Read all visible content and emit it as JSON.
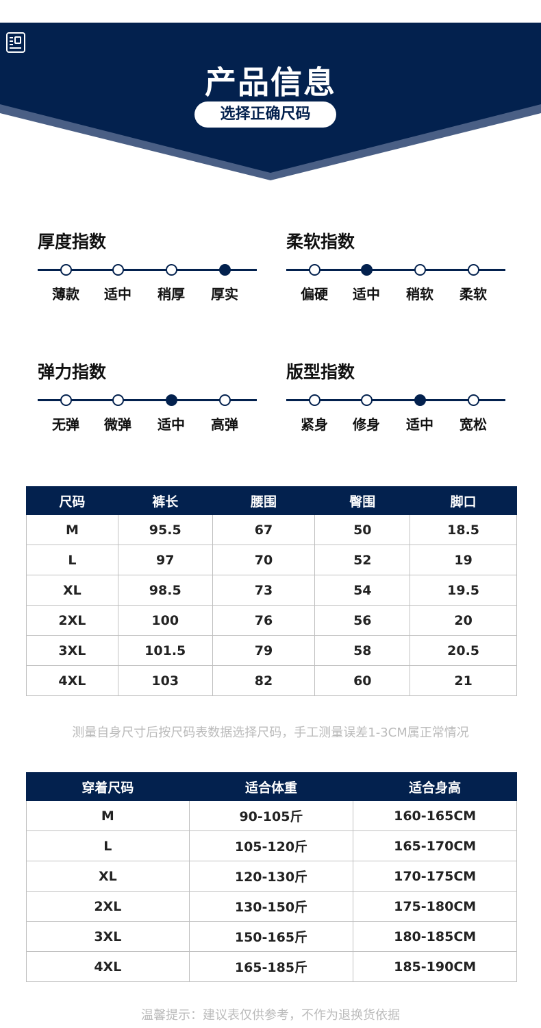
{
  "header": {
    "title": "产品信息",
    "subtitle": "选择正确尺码",
    "icon": "document-icon",
    "colors": {
      "navy": "#03214e",
      "stripe": "#4a5f85"
    }
  },
  "scales": [
    {
      "title": "厚度指数",
      "options": [
        "薄款",
        "适中",
        "稍厚",
        "厚实"
      ],
      "selected": 3
    },
    {
      "title": "柔软指数",
      "options": [
        "偏硬",
        "适中",
        "稍软",
        "柔软"
      ],
      "selected": 1
    },
    {
      "title": "弹力指数",
      "options": [
        "无弹",
        "微弹",
        "适中",
        "高弹"
      ],
      "selected": 2
    },
    {
      "title": "版型指数",
      "options": [
        "紧身",
        "修身",
        "适中",
        "宽松"
      ],
      "selected": 2
    }
  ],
  "size_table": {
    "headers": [
      "尺码",
      "裤长",
      "腰围",
      "臀围",
      "脚口"
    ],
    "rows": [
      [
        "M",
        "95.5",
        "67",
        "50",
        "18.5"
      ],
      [
        "L",
        "97",
        "70",
        "52",
        "19"
      ],
      [
        "XL",
        "98.5",
        "73",
        "54",
        "19.5"
      ],
      [
        "2XL",
        "100",
        "76",
        "56",
        "20"
      ],
      [
        "3XL",
        "101.5",
        "79",
        "58",
        "20.5"
      ],
      [
        "4XL",
        "103",
        "82",
        "60",
        "21"
      ]
    ]
  },
  "size_note": "测量自身尺寸后按尺码表数据选择尺码，手工测量误差1-3CM属正常情况",
  "fit_table": {
    "headers": [
      "穿着尺码",
      "适合体重",
      "适合身高"
    ],
    "rows": [
      [
        "M",
        "90-105斤",
        "160-165CM"
      ],
      [
        "L",
        "105-120斤",
        "165-170CM"
      ],
      [
        "XL",
        "120-130斤",
        "170-175CM"
      ],
      [
        "2XL",
        "130-150斤",
        "175-180CM"
      ],
      [
        "3XL",
        "150-165斤",
        "180-185CM"
      ],
      [
        "4XL",
        "165-185斤",
        "185-190CM"
      ]
    ]
  },
  "footer_note": "温馨提示：建议表仅供参考，不作为退换货依据"
}
